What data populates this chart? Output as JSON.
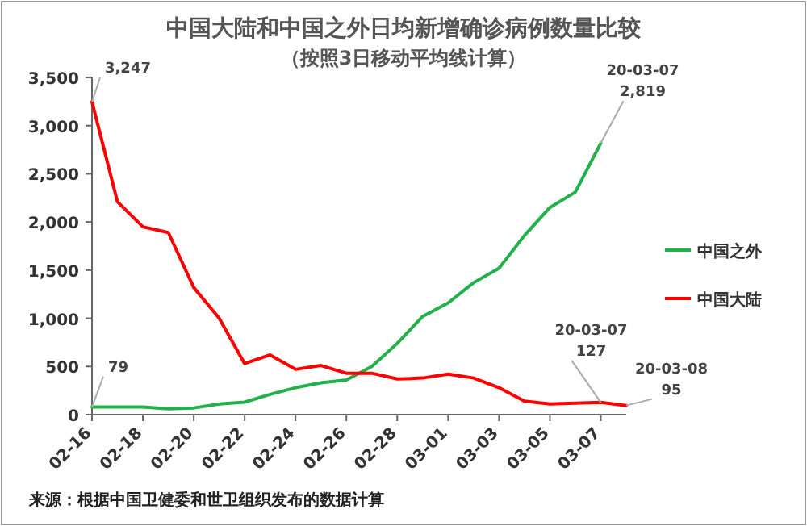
{
  "chart_data": {
    "type": "line",
    "title": "中国大陆和中国之外日均新增确诊病例数量比较",
    "subtitle": "（按照3日移动平均线计算）",
    "x": [
      "--02-16",
      "--02-17",
      "--02-18",
      "--02-19",
      "--02-20",
      "--02-21",
      "--02-22",
      "--02-23",
      "--02-24",
      "--02-25",
      "--02-26",
      "--02-27",
      "--02-28",
      "--02-29",
      "--03-01",
      "--03-02",
      "--03-03",
      "--03-04",
      "--03-05",
      "--03-06",
      "--03-07",
      "--03-08"
    ],
    "series": [
      {
        "name": "中国之外",
        "color": "#22b04b",
        "values": [
          79,
          80,
          80,
          60,
          70,
          110,
          130,
          210,
          280,
          330,
          360,
          500,
          740,
          1020,
          1160,
          1370,
          1520,
          1860,
          2150,
          2310,
          2819,
          null
        ]
      },
      {
        "name": "中国大陆",
        "color": "#ff0000",
        "values": [
          3247,
          2210,
          1950,
          1890,
          1320,
          1000,
          530,
          620,
          470,
          510,
          430,
          430,
          370,
          380,
          420,
          380,
          280,
          140,
          110,
          120,
          127,
          95
        ]
      }
    ],
    "xlim": [
      "--02-16",
      "--03-08"
    ],
    "xticks": [
      {
        "value": "--02-16",
        "label": "02-16"
      },
      {
        "value": "--02-18",
        "label": "02-18"
      },
      {
        "value": "--02-20",
        "label": "02-20"
      },
      {
        "value": "--02-22",
        "label": "02-22"
      },
      {
        "value": "--02-24",
        "label": "02-24"
      },
      {
        "value": "--02-26",
        "label": "02-26"
      },
      {
        "value": "--02-28",
        "label": "02-28"
      },
      {
        "value": "--03-01",
        "label": "03-01"
      },
      {
        "value": "--03-03",
        "label": "03-03"
      },
      {
        "value": "--03-05",
        "label": "03-05"
      },
      {
        "value": "--03-07",
        "label": "03-07"
      }
    ],
    "ylim": [
      0,
      3500
    ],
    "yticks": [
      {
        "value": 0,
        "label": "0"
      },
      {
        "value": 500,
        "label": "500"
      },
      {
        "value": 1000,
        "label": "1,000"
      },
      {
        "value": 1500,
        "label": "1,500"
      },
      {
        "value": 2000,
        "label": "2,000"
      },
      {
        "value": 2500,
        "label": "2,500"
      },
      {
        "value": 3000,
        "label": "3,000"
      },
      {
        "value": 3500,
        "label": "3,500"
      }
    ],
    "grid": false,
    "legend": "right",
    "marker": "none",
    "line_style": "solid",
    "annotations": [
      {
        "text": "3,247",
        "x": "--02-16",
        "y": 3247
      },
      {
        "text": "79",
        "x": "--02-16",
        "y": 79
      },
      {
        "text": "20-03-07\n2,819",
        "x": "--03-07",
        "y": 2819
      },
      {
        "text": "20-03-07\n127",
        "x": "--03-07",
        "y": 127
      },
      {
        "text": "20-03-08\n95",
        "x": "--03-08",
        "y": 95
      },
      "来源：根据中国卫健委和世卫组织发布的数据计算"
    ]
  }
}
